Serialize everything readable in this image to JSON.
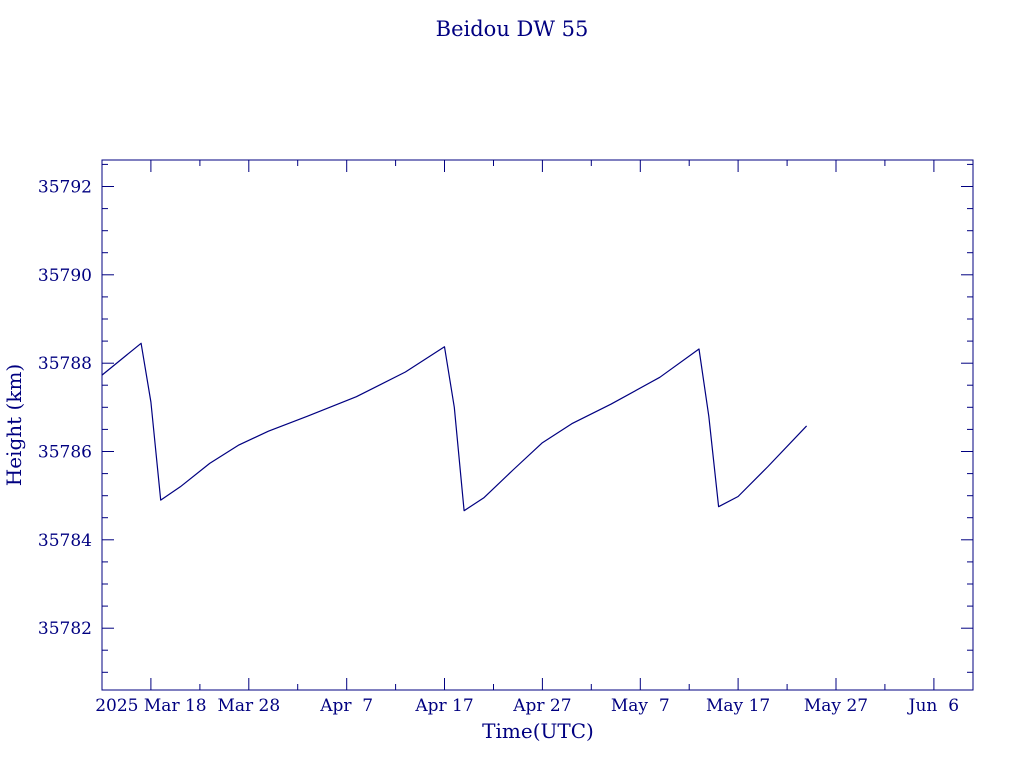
{
  "chart_data": {
    "type": "line",
    "title": "Beidou DW 55",
    "xlabel": "Time(UTC)",
    "ylabel": "Height (km)",
    "ylim": [
      35780.6,
      35792.6
    ],
    "xlim": [
      "2025-03-13",
      "2025-06-10"
    ],
    "grid": false,
    "color": "#000080",
    "x_ticks": [
      {
        "date": "2025-03-18",
        "label": "2025 Mar 18"
      },
      {
        "date": "2025-03-28",
        "label": "Mar 28"
      },
      {
        "date": "2025-04-07",
        "label": "Apr  7"
      },
      {
        "date": "2025-04-17",
        "label": "Apr 17"
      },
      {
        "date": "2025-04-27",
        "label": "Apr 27"
      },
      {
        "date": "2025-05-07",
        "label": "May  7"
      },
      {
        "date": "2025-05-17",
        "label": "May 17"
      },
      {
        "date": "2025-05-27",
        "label": "May 27"
      },
      {
        "date": "2025-06-06",
        "label": "Jun  6"
      }
    ],
    "y_ticks": [
      35782,
      35784,
      35786,
      35788,
      35790,
      35792
    ],
    "series": [
      {
        "x": [
          "2025-03-13",
          "2025-03-17",
          "2025-03-18",
          "2025-03-19",
          "2025-03-21",
          "2025-03-24",
          "2025-03-27",
          "2025-03-30",
          "2025-04-03",
          "2025-04-08",
          "2025-04-13",
          "2025-04-17",
          "2025-04-18",
          "2025-04-19",
          "2025-04-21",
          "2025-04-24",
          "2025-04-27",
          "2025-04-30",
          "2025-05-04",
          "2025-05-09",
          "2025-05-13",
          "2025-05-14",
          "2025-05-15",
          "2025-05-17",
          "2025-05-20",
          "2025-05-24"
        ],
        "y": [
          35787.73,
          35788.45,
          35787.12,
          35784.9,
          35785.2,
          35785.73,
          35786.15,
          35786.46,
          35786.8,
          35787.24,
          35787.8,
          35788.37,
          35787.0,
          35784.66,
          35784.95,
          35785.58,
          35786.2,
          35786.63,
          35787.07,
          35787.68,
          35788.32,
          35786.8,
          35784.75,
          35784.98,
          35785.65,
          35786.58
        ]
      }
    ]
  }
}
